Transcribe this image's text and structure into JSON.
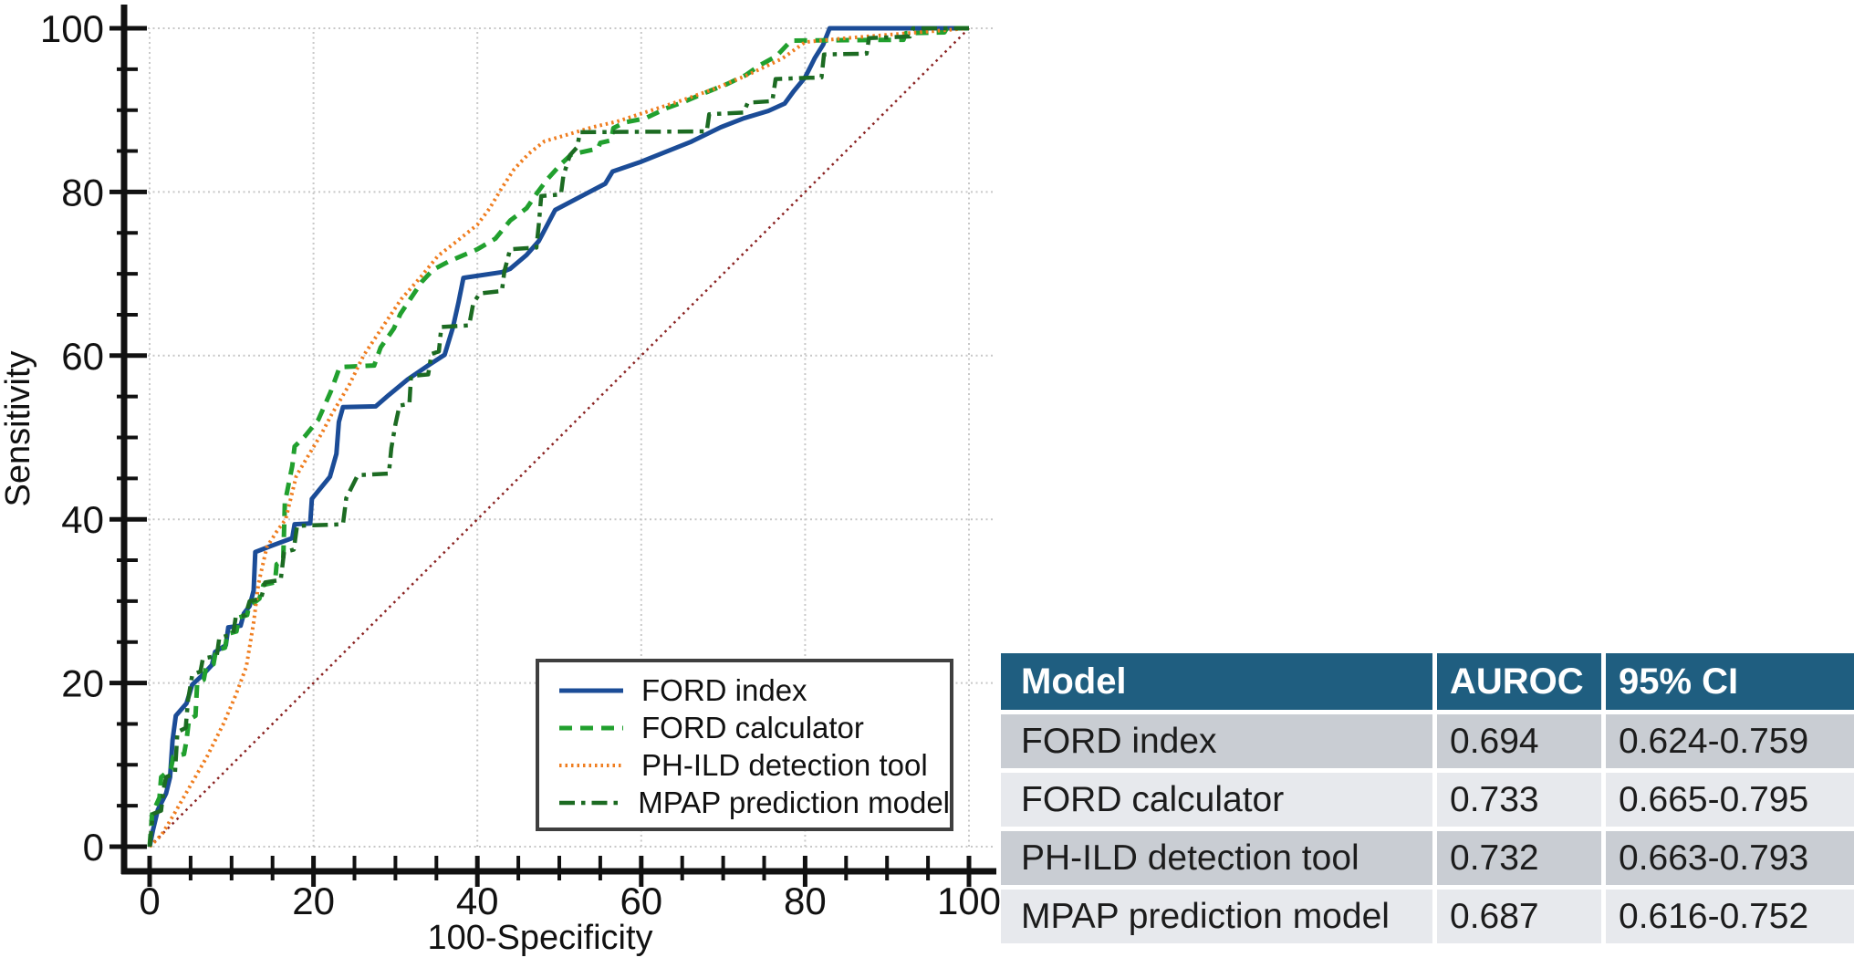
{
  "figure": {
    "background": "#ffffff"
  },
  "chart_data": {
    "type": "line",
    "title": "",
    "xlabel": "100-Specificity",
    "ylabel": "Sensitivity",
    "xlim": [
      0,
      100
    ],
    "ylim": [
      0,
      100
    ],
    "x_tick_labels": [
      "0",
      "20",
      "40",
      "60",
      "80",
      "100"
    ],
    "y_tick_labels": [
      "0",
      "20",
      "40",
      "60",
      "80",
      "100"
    ],
    "major_tick_step": 20,
    "minor_tick_step": 5,
    "grid": {
      "show": true,
      "style": "dotted",
      "color": "#c8c8c8",
      "interval": 20
    },
    "reference_diagonal": {
      "name": "chance-line",
      "color": "#8b2322",
      "style": "dotted",
      "points": [
        [
          0,
          0
        ],
        [
          100,
          100
        ]
      ]
    },
    "legend_position": "inside-bottom-right",
    "series": [
      {
        "name": "FORD index",
        "color": "#1b4c97",
        "style": "solid",
        "width": 5,
        "points": [
          [
            0,
            0
          ],
          [
            0.4,
            2
          ],
          [
            1,
            4.5
          ],
          [
            2,
            6.5
          ],
          [
            2.5,
            8.5
          ],
          [
            2.8,
            13
          ],
          [
            3.2,
            16
          ],
          [
            4.5,
            17.5
          ],
          [
            5.2,
            19.8
          ],
          [
            6.5,
            21
          ],
          [
            7.6,
            22.2
          ],
          [
            8,
            23.8
          ],
          [
            9.3,
            24.6
          ],
          [
            9.6,
            26.8
          ],
          [
            11.1,
            27
          ],
          [
            11.5,
            28.5
          ],
          [
            12.2,
            29.4
          ],
          [
            12.7,
            31.3
          ],
          [
            12.9,
            36
          ],
          [
            14.7,
            36.7
          ],
          [
            17.4,
            37.7
          ],
          [
            17.7,
            39.4
          ],
          [
            19.6,
            39.5
          ],
          [
            19.8,
            42.5
          ],
          [
            22,
            45.2
          ],
          [
            22.8,
            48
          ],
          [
            23.1,
            51.9
          ],
          [
            23.6,
            53.7
          ],
          [
            27.6,
            53.8
          ],
          [
            29.2,
            55.2
          ],
          [
            31.5,
            57.1
          ],
          [
            34,
            58.8
          ],
          [
            36,
            60.1
          ],
          [
            37,
            63.4
          ],
          [
            37.7,
            66.5
          ],
          [
            38.3,
            69.5
          ],
          [
            43,
            70.2
          ],
          [
            44,
            70.6
          ],
          [
            46,
            72.3
          ],
          [
            47.5,
            74
          ],
          [
            49.5,
            77.8
          ],
          [
            55.6,
            81
          ],
          [
            56.5,
            82.5
          ],
          [
            60,
            83.7
          ],
          [
            63,
            84.9
          ],
          [
            66,
            86.1
          ],
          [
            69.7,
            87.9
          ],
          [
            72.5,
            89
          ],
          [
            75.5,
            89.9
          ],
          [
            77.5,
            90.8
          ],
          [
            78.6,
            92.3
          ],
          [
            80,
            94
          ],
          [
            81.2,
            96.4
          ],
          [
            82.2,
            98
          ],
          [
            83,
            100
          ],
          [
            100,
            100
          ]
        ]
      },
      {
        "name": "FORD calculator",
        "color": "#21a02e",
        "style": "dashed",
        "width": 5,
        "points": [
          [
            0,
            0
          ],
          [
            0.3,
            4
          ],
          [
            1.2,
            6
          ],
          [
            1.4,
            8.5
          ],
          [
            2.6,
            9.5
          ],
          [
            2.9,
            11
          ],
          [
            4.2,
            11.3
          ],
          [
            4.5,
            13
          ],
          [
            4.8,
            15.5
          ],
          [
            5.6,
            16
          ],
          [
            5.8,
            20
          ],
          [
            6.6,
            20.4
          ],
          [
            6.9,
            22
          ],
          [
            7.8,
            22.3
          ],
          [
            8.1,
            24
          ],
          [
            9.2,
            24.3
          ],
          [
            9.5,
            26
          ],
          [
            10.6,
            26.3
          ],
          [
            10.9,
            28
          ],
          [
            11.9,
            28.3
          ],
          [
            12.1,
            29.3
          ],
          [
            13.4,
            30.3
          ],
          [
            13.9,
            32
          ],
          [
            15.3,
            32.3
          ],
          [
            15.5,
            34.5
          ],
          [
            16.3,
            35
          ],
          [
            16.5,
            42
          ],
          [
            17,
            44.5
          ],
          [
            17.4,
            46.5
          ],
          [
            17.7,
            48.9
          ],
          [
            19,
            50.2
          ],
          [
            20.6,
            52.2
          ],
          [
            22.1,
            55.6
          ],
          [
            23.2,
            58.6
          ],
          [
            27.4,
            58.8
          ],
          [
            28.2,
            61
          ],
          [
            29.8,
            63.3
          ],
          [
            30.6,
            65.1
          ],
          [
            32,
            67.2
          ],
          [
            33.2,
            69
          ],
          [
            34.6,
            70.5
          ],
          [
            36.5,
            71.5
          ],
          [
            40,
            73
          ],
          [
            42.2,
            74.3
          ],
          [
            44,
            76.5
          ],
          [
            46,
            78
          ],
          [
            47.3,
            79.9
          ],
          [
            48.5,
            81.5
          ],
          [
            50.3,
            83.5
          ],
          [
            51.5,
            84.6
          ],
          [
            54.7,
            85.3
          ],
          [
            55,
            86
          ],
          [
            56.3,
            86.3
          ],
          [
            56.6,
            87.8
          ],
          [
            58,
            88.5
          ],
          [
            60.5,
            89
          ],
          [
            63,
            90.2
          ],
          [
            65.2,
            91
          ],
          [
            68,
            92.2
          ],
          [
            70.5,
            93.2
          ],
          [
            72.8,
            94.3
          ],
          [
            74.5,
            95.5
          ],
          [
            76.5,
            96.6
          ],
          [
            78.3,
            98.5
          ],
          [
            92,
            98.6
          ],
          [
            92.3,
            99.4
          ],
          [
            97,
            99.5
          ],
          [
            97.3,
            100
          ],
          [
            100,
            100
          ]
        ]
      },
      {
        "name": "PH-ILD detection tool",
        "color": "#ef7d1f",
        "style": "dotted",
        "width": 4,
        "points": [
          [
            0,
            0
          ],
          [
            1.5,
            1.5
          ],
          [
            3,
            4
          ],
          [
            5,
            7.5
          ],
          [
            7,
            11
          ],
          [
            9,
            15
          ],
          [
            10.5,
            18.5
          ],
          [
            11.8,
            22
          ],
          [
            12.7,
            27.4
          ],
          [
            13.3,
            32.2
          ],
          [
            14.3,
            36.6
          ],
          [
            15.5,
            38.5
          ],
          [
            16.6,
            40
          ],
          [
            17.9,
            45.3
          ],
          [
            19.5,
            48
          ],
          [
            21,
            50.5
          ],
          [
            22.2,
            52.8
          ],
          [
            24.4,
            56.5
          ],
          [
            26.1,
            60
          ],
          [
            28.5,
            63.6
          ],
          [
            30.7,
            66.9
          ],
          [
            33,
            69.5
          ],
          [
            35.2,
            72.2
          ],
          [
            37.4,
            73.9
          ],
          [
            40,
            76
          ],
          [
            41.5,
            78
          ],
          [
            43,
            80.5
          ],
          [
            44.5,
            82.8
          ],
          [
            46.3,
            84.7
          ],
          [
            48.2,
            86.2
          ],
          [
            51,
            87
          ],
          [
            54,
            87.9
          ],
          [
            57,
            88.6
          ],
          [
            61,
            89.9
          ],
          [
            65,
            91.2
          ],
          [
            69.2,
            92.7
          ],
          [
            73,
            94.3
          ],
          [
            77.2,
            96.3
          ],
          [
            80,
            98.3
          ],
          [
            85,
            98.8
          ],
          [
            90,
            99.2
          ],
          [
            95,
            99.6
          ],
          [
            100,
            100
          ]
        ]
      },
      {
        "name": "MPAP prediction model",
        "color": "#1c6b22",
        "style": "dashdot",
        "width": 4.5,
        "points": [
          [
            0,
            0
          ],
          [
            0.4,
            4
          ],
          [
            1.4,
            4.4
          ],
          [
            1.7,
            7
          ],
          [
            2,
            8.5
          ],
          [
            3.1,
            9
          ],
          [
            3.4,
            14
          ],
          [
            4.4,
            14.5
          ],
          [
            4.7,
            18
          ],
          [
            5.2,
            21
          ],
          [
            6.2,
            21.4
          ],
          [
            6.5,
            23
          ],
          [
            8.2,
            23.3
          ],
          [
            8.5,
            25.5
          ],
          [
            10.2,
            26
          ],
          [
            10.5,
            28
          ],
          [
            11.7,
            28.3
          ],
          [
            12.2,
            30
          ],
          [
            13.6,
            30.3
          ],
          [
            14.1,
            32.3
          ],
          [
            16,
            32.6
          ],
          [
            16.4,
            36
          ],
          [
            17.6,
            36.3
          ],
          [
            18,
            39.2
          ],
          [
            23.6,
            39.4
          ],
          [
            24,
            42.6
          ],
          [
            25.4,
            45.4
          ],
          [
            29.2,
            45.6
          ],
          [
            29.5,
            48.7
          ],
          [
            30,
            51.6
          ],
          [
            30.5,
            53.9
          ],
          [
            31.7,
            54.1
          ],
          [
            31.9,
            57.5
          ],
          [
            34,
            57.7
          ],
          [
            34.4,
            60.2
          ],
          [
            35.3,
            60.5
          ],
          [
            35.6,
            63.5
          ],
          [
            39,
            63.7
          ],
          [
            39.5,
            66.4
          ],
          [
            40.3,
            67.6
          ],
          [
            43,
            67.9
          ],
          [
            43.3,
            70.3
          ],
          [
            44,
            73
          ],
          [
            47.2,
            73.2
          ],
          [
            47.5,
            76
          ],
          [
            47.8,
            79.5
          ],
          [
            50.2,
            79.7
          ],
          [
            50.5,
            82
          ],
          [
            51.3,
            84.5
          ],
          [
            52.2,
            85.5
          ],
          [
            52.5,
            87.3
          ],
          [
            68,
            87.4
          ],
          [
            68.3,
            89.5
          ],
          [
            72.5,
            89.7
          ],
          [
            73,
            90.9
          ],
          [
            76,
            91.1
          ],
          [
            76.4,
            93.8
          ],
          [
            82,
            94
          ],
          [
            82.3,
            96.8
          ],
          [
            87.5,
            96.9
          ],
          [
            87.8,
            98.8
          ],
          [
            92.8,
            99
          ],
          [
            93.2,
            100
          ],
          [
            100,
            100
          ]
        ]
      }
    ]
  },
  "legend": {
    "entries": [
      "FORD index",
      "FORD calculator",
      "PH-ILD detection tool",
      "MPAP prediction model"
    ]
  },
  "results_table": {
    "headers": [
      "Model",
      "AUROC",
      "95% CI"
    ],
    "rows": [
      {
        "model": "FORD index",
        "auroc": "0.694",
        "ci": "0.624-0.759"
      },
      {
        "model": "FORD calculator",
        "auroc": "0.733",
        "ci": "0.665-0.795"
      },
      {
        "model": "PH-ILD detection tool",
        "auroc": "0.732",
        "ci": "0.663-0.793"
      },
      {
        "model": "MPAP prediction model",
        "auroc": "0.687",
        "ci": "0.616-0.752"
      }
    ],
    "header_bg": "#1f5e80",
    "header_text_color": "#ffffff",
    "row_bg_odd": "#c9cdd3",
    "row_bg_even": "#e7e9ed"
  }
}
